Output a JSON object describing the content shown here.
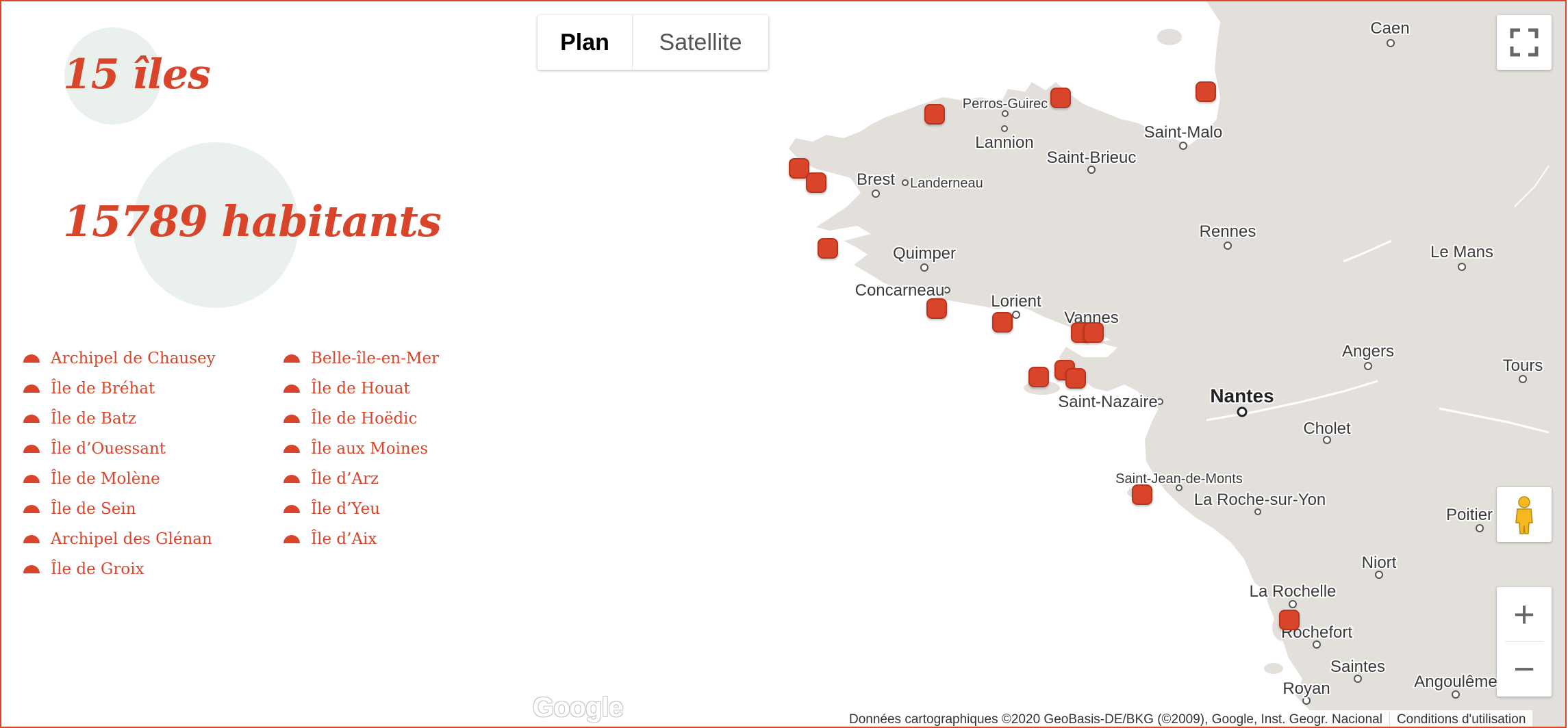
{
  "stats": {
    "islands": "15 îles",
    "inhabitants": "15789 habitants"
  },
  "islands_left": [
    "Archipel de Chausey",
    "Île de Bréhat",
    "Île de Batz",
    "Île d’Ouessant",
    "Île de Molène",
    "Île de Sein",
    "Archipel des Glénan",
    "Île de Groix"
  ],
  "islands_right": [
    "Belle-île-en-Mer",
    "Île de Houat",
    "Île de Hoëdic",
    "Île aux Moines",
    "Île d’Arz",
    "Île d’Yeu",
    "Île d’Aix"
  ],
  "map": {
    "map_type": {
      "plan": "Plan",
      "satellite": "Satellite",
      "selected": "Plan"
    },
    "cities": {
      "caen": "Caen",
      "perros_guirec": "Perros-Guirec",
      "lannion": "Lannion",
      "saint_malo": "Saint-Malo",
      "saint_brieuc": "Saint-Brieuc",
      "brest": "Brest",
      "landerneau": "Landerneau",
      "rennes": "Rennes",
      "le_mans": "Le Mans",
      "quimper": "Quimper",
      "concarneau": "Concarneau",
      "lorient": "Lorient",
      "vannes": "Vannes",
      "angers": "Angers",
      "tours": "Tours",
      "nantes": "Nantes",
      "saint_nazaire": "Saint-Nazaire",
      "cholet": "Cholet",
      "saint_jean_de_monts": "Saint-Jean-de-Monts",
      "la_roche_sur_yon": "La Roche-sur-Yon",
      "poitiers": "Poitier",
      "niort": "Niort",
      "la_rochelle": "La Rochelle",
      "rochefort": "Rochefort",
      "saintes": "Saintes",
      "royan": "Royan",
      "angouleme": "Angoulême"
    },
    "google_logo": "Google",
    "attribution": "Données cartographiques ©2020 GeoBasis-DE/BKG (©2009), Google, Inst. Geogr. Nacional",
    "terms": "Conditions d'utilisation",
    "zoom_in": "+",
    "zoom_out": "−",
    "colors": {
      "accent": "#d8452a",
      "land": "#e3e0dc",
      "stat_circle": "#eaf1ec"
    }
  }
}
